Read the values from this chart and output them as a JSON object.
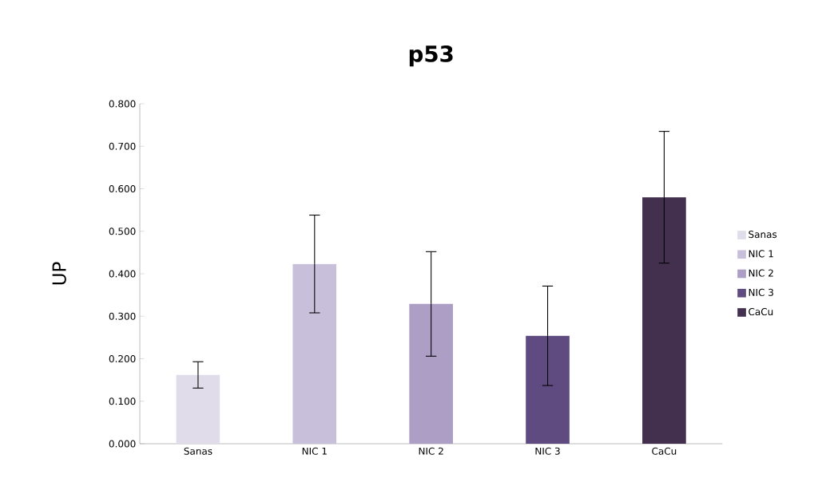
{
  "chart_data": {
    "type": "bar",
    "title": "p53",
    "ylabel": "UP",
    "categories": [
      "Sanas",
      "NIC 1",
      "NIC 2",
      "NIC 3",
      "CaCu"
    ],
    "series": [
      {
        "name": "Sanas",
        "color": "#e0dce9",
        "values": [
          0.162,
          null,
          null,
          null,
          null
        ],
        "errors": [
          0.031,
          null,
          null,
          null,
          null
        ]
      },
      {
        "name": "NIC 1",
        "color": "#c8bfdb",
        "values": [
          null,
          0.423,
          null,
          null,
          null
        ],
        "errors": [
          null,
          0.115,
          null,
          null,
          null
        ]
      },
      {
        "name": "NIC 2",
        "color": "#ac9ec5",
        "values": [
          null,
          null,
          0.329,
          null,
          null
        ],
        "errors": [
          null,
          null,
          0.123,
          null,
          null
        ]
      },
      {
        "name": "NIC 3",
        "color": "#5f4b7f",
        "values": [
          null,
          null,
          null,
          0.254,
          null
        ],
        "errors": [
          null,
          null,
          null,
          0.117,
          null
        ]
      },
      {
        "name": "CaCu",
        "color": "#43304f",
        "values": [
          null,
          null,
          null,
          null,
          0.58
        ],
        "errors": [
          null,
          null,
          null,
          null,
          0.155
        ]
      }
    ],
    "ylim": [
      0,
      0.8
    ],
    "yticks": [
      {
        "value": 0,
        "label": "0.000"
      },
      {
        "value": 0.1,
        "label": "0.100"
      },
      {
        "value": 0.2,
        "label": "0.200"
      },
      {
        "value": 0.3,
        "label": "0.300"
      },
      {
        "value": 0.4,
        "label": "0.400"
      },
      {
        "value": 0.5,
        "label": "0.500"
      },
      {
        "value": 0.6,
        "label": "0.600"
      },
      {
        "value": 0.7,
        "label": "0.700"
      },
      {
        "value": 0.8,
        "label": "0.800"
      }
    ],
    "legend": "right",
    "grid": false
  }
}
